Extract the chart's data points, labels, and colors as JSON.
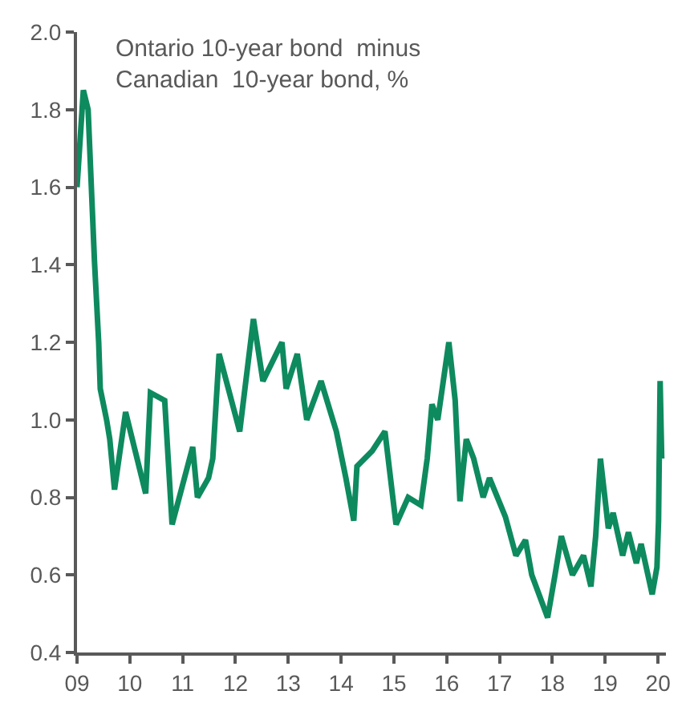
{
  "chart_data": {
    "type": "line",
    "annotations": [
      "Ontario 10-year bond  minus\nCanadian  10-year bond, %"
    ],
    "x": [
      2009.0,
      2009.12,
      2009.21,
      2009.33,
      2009.41,
      2009.44,
      2009.56,
      2009.62,
      2009.71,
      2009.92,
      2010.3,
      2010.39,
      2010.66,
      2010.8,
      2011.19,
      2011.28,
      2011.49,
      2011.57,
      2011.69,
      2012.08,
      2012.34,
      2012.52,
      2012.88,
      2012.96,
      2013.17,
      2013.35,
      2013.62,
      2013.91,
      2014.09,
      2014.24,
      2014.3,
      2014.59,
      2014.83,
      2015.04,
      2015.27,
      2015.51,
      2015.63,
      2015.72,
      2015.83,
      2016.04,
      2016.16,
      2016.25,
      2016.37,
      2016.51,
      2016.69,
      2016.81,
      2017.11,
      2017.31,
      2017.49,
      2017.61,
      2017.91,
      2018.05,
      2018.17,
      2018.38,
      2018.59,
      2018.73,
      2018.82,
      2018.91,
      2019.06,
      2019.15,
      2019.33,
      2019.44,
      2019.59,
      2019.68,
      2019.89,
      2019.98,
      2020.01,
      2020.04,
      2020.07
    ],
    "series": [
      {
        "color": "#0e8a5f",
        "values": [
          1.6,
          1.85,
          1.8,
          1.41,
          1.2,
          1.08,
          1.0,
          0.95,
          0.82,
          1.02,
          0.81,
          1.07,
          1.05,
          0.73,
          0.93,
          0.8,
          0.85,
          0.9,
          1.17,
          0.97,
          1.26,
          1.1,
          1.2,
          1.08,
          1.17,
          1.0,
          1.1,
          0.97,
          0.85,
          0.74,
          0.88,
          0.92,
          0.97,
          0.73,
          0.8,
          0.78,
          0.9,
          1.04,
          1.0,
          1.2,
          1.05,
          0.79,
          0.95,
          0.9,
          0.8,
          0.85,
          0.75,
          0.65,
          0.69,
          0.6,
          0.49,
          0.6,
          0.7,
          0.6,
          0.65,
          0.57,
          0.7,
          0.9,
          0.72,
          0.76,
          0.65,
          0.71,
          0.63,
          0.68,
          0.55,
          0.62,
          0.74,
          1.1,
          0.9
        ]
      }
    ],
    "xlim": [
      2009,
      2020.15
    ],
    "xticks": [
      {
        "value": 2009,
        "label": "09"
      },
      {
        "value": 2010,
        "label": "10"
      },
      {
        "value": 2011,
        "label": "11"
      },
      {
        "value": 2012,
        "label": "12"
      },
      {
        "value": 2013,
        "label": "13"
      },
      {
        "value": 2014,
        "label": "14"
      },
      {
        "value": 2015,
        "label": "15"
      },
      {
        "value": 2016,
        "label": "16"
      },
      {
        "value": 2017,
        "label": "17"
      },
      {
        "value": 2018,
        "label": "18"
      },
      {
        "value": 2019,
        "label": "19"
      },
      {
        "value": 2020,
        "label": "20"
      }
    ],
    "ylim": [
      0.4,
      2.0
    ],
    "yticks": [
      {
        "value": 0.4,
        "label": "0.4"
      },
      {
        "value": 0.6,
        "label": "0.6"
      },
      {
        "value": 0.8,
        "label": "0.8"
      },
      {
        "value": 1.0,
        "label": "1.0"
      },
      {
        "value": 1.2,
        "label": "1.2"
      },
      {
        "value": 1.4,
        "label": "1.4"
      },
      {
        "value": 1.6,
        "label": "1.6"
      },
      {
        "value": 1.8,
        "label": "1.8"
      },
      {
        "value": 2.0,
        "label": "2.0"
      }
    ],
    "line_style": "solid"
  }
}
